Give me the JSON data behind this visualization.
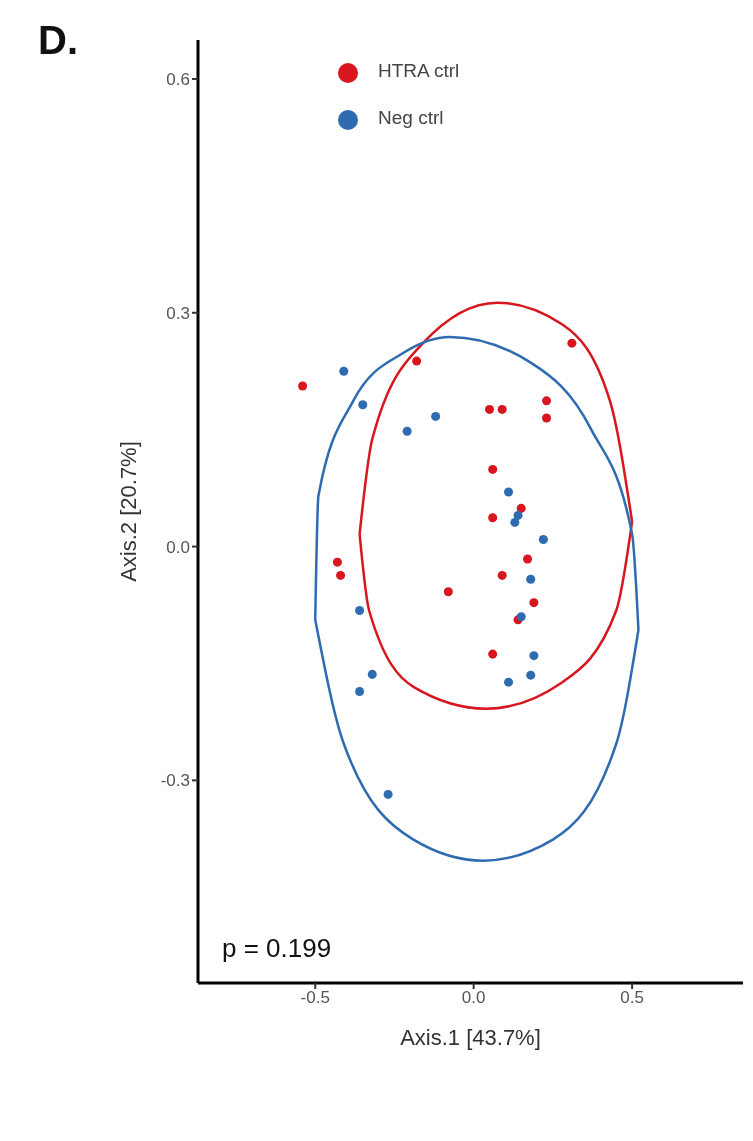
{
  "chart_data": {
    "type": "scatter",
    "xlabel": "Axis.1  [43.7%]",
    "ylabel": "Axis.2  [20.7%]",
    "annotations": [
      "D.",
      "p = 0.199"
    ],
    "xlim": [
      -0.87,
      0.85
    ],
    "xticks": [
      -0.5,
      {
        "value": 0,
        "label": "0.0"
      },
      0.5
    ],
    "ylim": [
      -0.56,
      0.65
    ],
    "yticks": [
      -0.3,
      {
        "value": 0,
        "label": "0.0"
      },
      0.3,
      0.6
    ],
    "grid": false,
    "legend": "top",
    "marker": "circle",
    "series": [
      {
        "name": "HTRA ctrl",
        "color": "#d7161e",
        "x": [
          -0.54,
          -0.18,
          0.31,
          0.05,
          0.09,
          0.23,
          0.23,
          0.06,
          0.06,
          0.15,
          -0.43,
          -0.42,
          -0.08,
          0.09,
          0.17,
          0.19,
          0.14,
          0.06
        ],
        "values": [
          0.206,
          0.238,
          0.261,
          0.176,
          0.176,
          0.187,
          0.165,
          0.099,
          0.037,
          0.049,
          -0.02,
          -0.037,
          -0.058,
          -0.037,
          -0.016,
          -0.072,
          -0.094,
          -0.138
        ]
      },
      {
        "name": "Neg ctrl",
        "color": "#2e6bb0",
        "x": [
          -0.41,
          -0.35,
          -0.12,
          -0.21,
          0.11,
          0.13,
          0.14,
          0.22,
          0.18,
          0.15,
          0.19,
          0.18,
          0.11,
          -0.32,
          -0.36,
          -0.36,
          -0.27
        ],
        "values": [
          0.225,
          0.182,
          0.167,
          0.148,
          0.07,
          0.031,
          0.04,
          0.009,
          -0.042,
          -0.09,
          -0.14,
          -0.165,
          -0.174,
          -0.164,
          -0.186,
          -0.082,
          -0.318
        ]
      },
      {
        "color": "#d7161e",
        "type": "line",
        "marker": "none",
        "x": [
          -0.36,
          -0.32,
          -0.16,
          0.075,
          0.28,
          0.43,
          0.5,
          null,
          -0.36,
          -0.33,
          -0.19,
          0.04,
          0.28,
          0.45,
          0.5
        ],
        "values": [
          0.016,
          0.138,
          0.261,
          0.313,
          0.285,
          0.187,
          0.032,
          null,
          0.016,
          -0.082,
          -0.18,
          -0.208,
          -0.174,
          -0.082,
          0.032
        ]
      },
      {
        "color": "#2e6bb0",
        "type": "line",
        "marker": "none",
        "x": [
          -0.5,
          -0.49,
          -0.38,
          -0.22,
          -0.075,
          0.18,
          0.37,
          0.5,
          0.52,
          null,
          -0.5,
          -0.41,
          -0.19,
          0.03,
          0.25,
          0.45,
          0.52
        ],
        "values": [
          -0.094,
          0.065,
          0.187,
          0.249,
          0.269,
          0.236,
          0.151,
          0.016,
          -0.107,
          null,
          -0.094,
          -0.253,
          -0.376,
          -0.403,
          -0.376,
          -0.253,
          -0.107
        ]
      }
    ]
  }
}
